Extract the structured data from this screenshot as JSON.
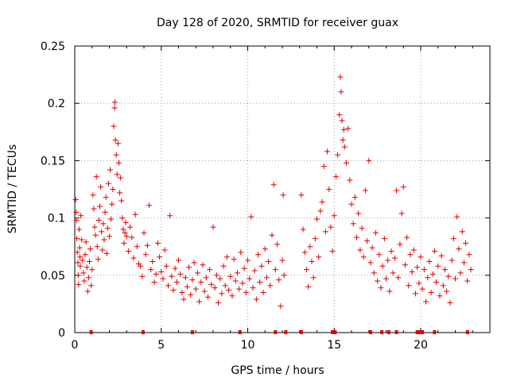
{
  "chart_data": {
    "type": "scatter",
    "title": "Day 128 of 2020, SRMTID for receiver guax",
    "xlabel": "GPS time / hours",
    "ylabel": "SRMTID / TECUs",
    "xlim": [
      0,
      24
    ],
    "ylim": [
      0,
      0.25
    ],
    "x_ticks": [
      0,
      5,
      10,
      15,
      20
    ],
    "x_tick_labels": [
      "0",
      "5",
      "10",
      "15",
      "20"
    ],
    "y_ticks": [
      0,
      0.05,
      0.1,
      0.15,
      0.2,
      0.25
    ],
    "y_tick_labels": [
      "0",
      "0.05",
      "0.1",
      "0.15",
      "0.2",
      "0.25"
    ],
    "grid": true,
    "marker": "+",
    "series_color": "#e00000",
    "series": [
      {
        "name": "SRMTID",
        "points": [
          [
            0.05,
            0.116
          ],
          [
            0.08,
            0.105
          ],
          [
            0.1,
            0.098
          ],
          [
            0.12,
            0.082
          ],
          [
            0.15,
            0.07
          ],
          [
            0.18,
            0.061
          ],
          [
            0.2,
            0.05
          ],
          [
            0.22,
            0.042
          ],
          [
            0.25,
            0.09
          ],
          [
            0.28,
            0.074
          ],
          [
            0.3,
            0.066
          ],
          [
            0.32,
            0.058
          ],
          [
            0.35,
            0.102
          ],
          [
            0.4,
            0.081
          ],
          [
            0.45,
            0.063
          ],
          [
            0.5,
            0.052
          ],
          [
            0.55,
            0.045
          ],
          [
            0.6,
            0.068
          ],
          [
            0.65,
            0.079
          ],
          [
            0.7,
            0.057
          ],
          [
            0.75,
            0.036
          ],
          [
            0.8,
            0.048
          ],
          [
            0.85,
            0.062
          ],
          [
            0.9,
            0.073
          ],
          [
            0.95,
            0.041
          ],
          [
            1.0,
            0.055
          ],
          [
            1.05,
            0.12
          ],
          [
            1.1,
            0.108
          ],
          [
            1.15,
            0.092
          ],
          [
            1.2,
            0.085
          ],
          [
            1.25,
            0.136
          ],
          [
            1.3,
            0.075
          ],
          [
            1.35,
            0.064
          ],
          [
            1.4,
            0.098
          ],
          [
            1.45,
            0.11
          ],
          [
            1.5,
            0.127
          ],
          [
            1.55,
            0.088
          ],
          [
            1.6,
            0.072
          ],
          [
            1.65,
            0.095
          ],
          [
            1.7,
            0.081
          ],
          [
            1.75,
            0.105
          ],
          [
            1.8,
            0.118
          ],
          [
            1.85,
            0.069
          ],
          [
            1.9,
            0.091
          ],
          [
            1.95,
            0.13
          ],
          [
            2.0,
            0.084
          ],
          [
            2.05,
            0.142
          ],
          [
            2.1,
            0.099
          ],
          [
            2.15,
            0.112
          ],
          [
            2.2,
            0.125
          ],
          [
            2.25,
            0.18
          ],
          [
            2.3,
            0.196
          ],
          [
            2.32,
            0.201
          ],
          [
            2.35,
            0.168
          ],
          [
            2.4,
            0.155
          ],
          [
            2.45,
            0.138
          ],
          [
            2.5,
            0.165
          ],
          [
            2.55,
            0.148
          ],
          [
            2.6,
            0.122
          ],
          [
            2.65,
            0.135
          ],
          [
            2.7,
            0.115
          ],
          [
            2.75,
            0.1
          ],
          [
            2.8,
            0.09
          ],
          [
            2.85,
            0.078
          ],
          [
            2.9,
            0.087
          ],
          [
            2.95,
            0.096
          ],
          [
            3.0,
            0.084
          ],
          [
            3.1,
            0.071
          ],
          [
            3.2,
            0.092
          ],
          [
            3.3,
            0.083
          ],
          [
            3.4,
            0.065
          ],
          [
            3.5,
            0.103
          ],
          [
            3.6,
            0.075
          ],
          [
            3.7,
            0.06
          ],
          [
            3.8,
            0.058
          ],
          [
            3.9,
            0.049
          ],
          [
            4.0,
            0.087
          ],
          [
            4.1,
            0.068
          ],
          [
            4.2,
            0.076
          ],
          [
            4.3,
            0.111
          ],
          [
            4.4,
            0.055
          ],
          [
            4.5,
            0.062
          ],
          [
            4.6,
            0.044
          ],
          [
            4.7,
            0.051
          ],
          [
            4.8,
            0.078
          ],
          [
            4.9,
            0.066
          ],
          [
            5.0,
            0.053
          ],
          [
            5.1,
            0.047
          ],
          [
            5.2,
            0.072
          ],
          [
            5.3,
            0.058
          ],
          [
            5.4,
            0.041
          ],
          [
            5.5,
            0.102
          ],
          [
            5.6,
            0.049
          ],
          [
            5.7,
            0.037
          ],
          [
            5.8,
            0.056
          ],
          [
            5.9,
            0.044
          ],
          [
            6.0,
            0.063
          ],
          [
            6.1,
            0.051
          ],
          [
            6.2,
            0.035
          ],
          [
            6.3,
            0.029
          ],
          [
            6.4,
            0.048
          ],
          [
            6.5,
            0.04
          ],
          [
            6.6,
            0.057
          ],
          [
            6.7,
            0.033
          ],
          [
            6.8,
            0.046
          ],
          [
            6.9,
            0.061
          ],
          [
            7.0,
            0.038
          ],
          [
            7.1,
            0.052
          ],
          [
            7.2,
            0.027
          ],
          [
            7.3,
            0.044
          ],
          [
            7.4,
            0.059
          ],
          [
            7.5,
            0.036
          ],
          [
            7.6,
            0.048
          ],
          [
            7.7,
            0.031
          ],
          [
            7.8,
            0.055
          ],
          [
            7.9,
            0.042
          ],
          [
            8.0,
            0.092
          ],
          [
            8.1,
            0.039
          ],
          [
            8.2,
            0.05
          ],
          [
            8.3,
            0.026
          ],
          [
            8.4,
            0.047
          ],
          [
            8.5,
            0.034
          ],
          [
            8.6,
            0.058
          ],
          [
            8.7,
            0.041
          ],
          [
            8.8,
            0.066
          ],
          [
            8.9,
            0.037
          ],
          [
            9.0,
            0.049
          ],
          [
            9.1,
            0.032
          ],
          [
            9.2,
            0.064
          ],
          [
            9.3,
            0.045
          ],
          [
            9.4,
            0.052
          ],
          [
            9.5,
            0.038
          ],
          [
            9.6,
            0.07
          ],
          [
            9.7,
            0.043
          ],
          [
            9.8,
            0.056
          ],
          [
            9.9,
            0.035
          ],
          [
            10.0,
            0.063
          ],
          [
            10.1,
            0.047
          ],
          [
            10.2,
            0.101
          ],
          [
            10.3,
            0.039
          ],
          [
            10.4,
            0.054
          ],
          [
            10.5,
            0.029
          ],
          [
            10.6,
            0.068
          ],
          [
            10.7,
            0.044
          ],
          [
            10.8,
            0.058
          ],
          [
            10.9,
            0.035
          ],
          [
            11.0,
            0.073
          ],
          [
            11.1,
            0.048
          ],
          [
            11.2,
            0.062
          ],
          [
            11.3,
            0.041
          ],
          [
            11.4,
            0.085
          ],
          [
            11.5,
            0.129
          ],
          [
            11.6,
            0.055
          ],
          [
            11.7,
            0.077
          ],
          [
            11.8,
            0.046
          ],
          [
            11.9,
            0.023
          ],
          [
            12.0,
            0.063
          ],
          [
            12.05,
            0.12
          ],
          [
            12.1,
            0.05
          ],
          [
            13.1,
            0.12
          ],
          [
            13.2,
            0.09
          ],
          [
            13.3,
            0.07
          ],
          [
            13.4,
            0.055
          ],
          [
            13.5,
            0.04
          ],
          [
            13.6,
            0.075
          ],
          [
            13.7,
            0.062
          ],
          [
            13.8,
            0.048
          ],
          [
            13.9,
            0.082
          ],
          [
            14.0,
            0.099
          ],
          [
            14.1,
            0.066
          ],
          [
            14.2,
            0.106
          ],
          [
            14.3,
            0.114
          ],
          [
            14.4,
            0.145
          ],
          [
            14.5,
            0.088
          ],
          [
            14.6,
            0.158
          ],
          [
            14.7,
            0.125
          ],
          [
            14.8,
            0.092
          ],
          [
            14.9,
            0.071
          ],
          [
            15.0,
            0.102
          ],
          [
            15.1,
            0.136
          ],
          [
            15.2,
            0.155
          ],
          [
            15.3,
            0.19
          ],
          [
            15.35,
            0.223
          ],
          [
            15.4,
            0.21
          ],
          [
            15.45,
            0.185
          ],
          [
            15.5,
            0.168
          ],
          [
            15.55,
            0.177
          ],
          [
            15.6,
            0.162
          ],
          [
            15.7,
            0.148
          ],
          [
            15.8,
            0.178
          ],
          [
            15.9,
            0.133
          ],
          [
            16.0,
            0.112
          ],
          [
            16.1,
            0.095
          ],
          [
            16.2,
            0.118
          ],
          [
            16.3,
            0.083
          ],
          [
            16.4,
            0.104
          ],
          [
            16.5,
            0.072
          ],
          [
            16.6,
            0.091
          ],
          [
            16.7,
            0.066
          ],
          [
            16.8,
            0.124
          ],
          [
            16.9,
            0.08
          ],
          [
            17.0,
            0.15
          ],
          [
            17.1,
            0.061
          ],
          [
            17.2,
            0.074
          ],
          [
            17.3,
            0.052
          ],
          [
            17.4,
            0.087
          ],
          [
            17.5,
            0.045
          ],
          [
            17.6,
            0.068
          ],
          [
            17.7,
            0.039
          ],
          [
            17.8,
            0.058
          ],
          [
            17.9,
            0.082
          ],
          [
            18.0,
            0.047
          ],
          [
            18.1,
            0.063
          ],
          [
            18.2,
            0.036
          ],
          [
            18.3,
            0.071
          ],
          [
            18.4,
            0.052
          ],
          [
            18.5,
            0.065
          ],
          [
            18.6,
            0.124
          ],
          [
            18.7,
            0.048
          ],
          [
            18.8,
            0.077
          ],
          [
            18.9,
            0.104
          ],
          [
            19.0,
            0.127
          ],
          [
            19.1,
            0.059
          ],
          [
            19.2,
            0.083
          ],
          [
            19.3,
            0.041
          ],
          [
            19.4,
            0.068
          ],
          [
            19.5,
            0.053
          ],
          [
            19.6,
            0.072
          ],
          [
            19.7,
            0.034
          ],
          [
            19.8,
            0.057
          ],
          [
            19.9,
            0.043
          ],
          [
            20.0,
            0.066
          ],
          [
            20.1,
            0.038
          ],
          [
            20.2,
            0.055
          ],
          [
            20.3,
            0.027
          ],
          [
            20.4,
            0.048
          ],
          [
            20.5,
            0.062
          ],
          [
            20.6,
            0.035
          ],
          [
            20.7,
            0.051
          ],
          [
            20.8,
            0.071
          ],
          [
            20.9,
            0.044
          ],
          [
            21.0,
            0.058
          ],
          [
            21.1,
            0.032
          ],
          [
            21.2,
            0.067
          ],
          [
            21.3,
            0.041
          ],
          [
            21.4,
            0.055
          ],
          [
            21.5,
            0.036
          ],
          [
            21.6,
            0.049
          ],
          [
            21.7,
            0.026
          ],
          [
            21.8,
            0.063
          ],
          [
            21.9,
            0.082
          ],
          [
            22.0,
            0.047
          ],
          [
            22.1,
            0.101
          ],
          [
            22.2,
            0.073
          ],
          [
            22.3,
            0.052
          ],
          [
            22.4,
            0.088
          ],
          [
            22.5,
            0.061
          ],
          [
            22.6,
            0.078
          ],
          [
            22.7,
            0.045
          ],
          [
            22.8,
            0.068
          ],
          [
            22.9,
            0.055
          ]
        ]
      }
    ],
    "baseline_markers_x": [
      0.95,
      3.95,
      6.8,
      9.55,
      11.6,
      12.2,
      13.1,
      14.9,
      15.05,
      17.1,
      17.75,
      18.15,
      18.6,
      19.8,
      19.95,
      20.1,
      20.8,
      22.7
    ]
  }
}
